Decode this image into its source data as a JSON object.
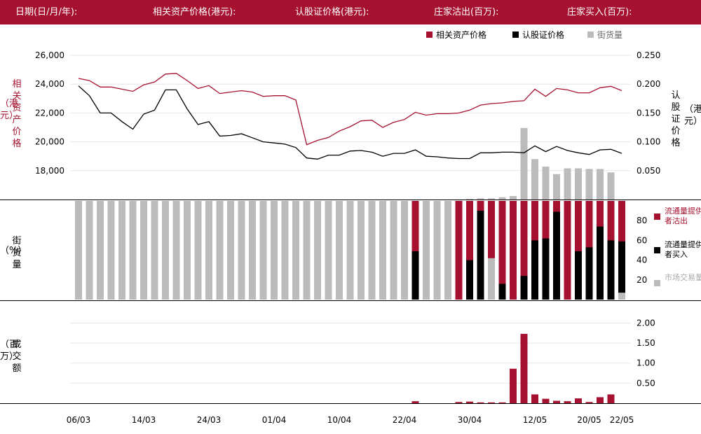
{
  "header": {
    "date_label": "日期(日/月/年):",
    "underlying_label": "相关资产价格(港元):",
    "warrant_label": "认股证价格(港元):",
    "mm_sell_label": "庄家沽出(百万):",
    "mm_buy_label": "庄家买入(百万):"
  },
  "colors": {
    "brand": "#a6112f",
    "black": "#000000",
    "gray": "#bbbbbb"
  },
  "chart_data": [
    {
      "type": "line",
      "legend": [
        "相关资产价格",
        "认股证价格",
        "街货量"
      ],
      "ylabel_left": "相关资产价格（港元）",
      "ylabel_right": "认股证价格（港元）",
      "yticks_left": [
        "26,000",
        "24,000",
        "22,000",
        "20,000",
        "18,000"
      ],
      "yticks_right": [
        "0.250",
        "0.200",
        "0.150",
        "0.100",
        "0.050"
      ],
      "ylim_left": [
        16000,
        26000
      ],
      "ylim_right": [
        0,
        0.25
      ],
      "series": [
        {
          "name": "相关资产价格",
          "axis": "left",
          "values": [
            24400,
            24250,
            23800,
            23800,
            23650,
            23500,
            23950,
            24150,
            24700,
            24750,
            24250,
            23700,
            23900,
            23350,
            23450,
            23550,
            23450,
            23150,
            23200,
            23200,
            22900,
            19800,
            20100,
            20300,
            20750,
            21050,
            21450,
            21500,
            21000,
            21350,
            21550,
            22050,
            21850,
            21950,
            21950,
            22000,
            22200,
            22550,
            22650,
            22700,
            22800,
            22850,
            23650,
            23150,
            23700,
            23600,
            23400,
            23400,
            23750,
            23850,
            23550
          ]
        },
        {
          "name": "认股证价格",
          "axis": "right",
          "values": [
            0.197,
            0.18,
            0.15,
            0.15,
            0.135,
            0.122,
            0.148,
            0.155,
            0.19,
            0.19,
            0.157,
            0.13,
            0.135,
            0.11,
            0.111,
            0.114,
            0.107,
            0.1,
            0.098,
            0.096,
            0.09,
            0.072,
            0.07,
            0.077,
            0.077,
            0.084,
            0.085,
            0.082,
            0.075,
            0.08,
            0.08,
            0.086,
            0.075,
            0.074,
            0.072,
            0.071,
            0.071,
            0.081,
            0.081,
            0.082,
            0.082,
            0.081,
            0.093,
            0.083,
            0.092,
            0.085,
            0.081,
            0.078,
            0.086,
            0.087,
            0.08
          ]
        },
        {
          "name": "街货量",
          "axis": "right",
          "values": [
            0,
            0,
            0,
            0,
            0,
            0,
            0,
            0,
            0,
            0,
            0,
            0,
            0,
            0,
            0,
            0,
            0,
            0,
            0,
            0,
            0,
            0,
            0,
            0,
            0,
            0,
            0,
            0,
            0,
            0,
            0,
            0,
            0,
            0,
            0,
            0,
            0.001,
            0.002,
            0.002,
            0.004,
            0.006,
            0.124,
            0.07,
            0.057,
            0.044,
            0.054,
            0.054,
            0.053,
            0.053,
            0.047,
            0
          ]
        }
      ]
    },
    {
      "type": "bar",
      "ylabel": "街货量（%）",
      "yticks": [
        "80",
        "60",
        "40",
        "20"
      ],
      "ylim": [
        0,
        100
      ],
      "legend": [
        "流通量提供者沽出",
        "流通量提供者买入",
        "市场交易量"
      ],
      "series": [
        {
          "name": "流通量提供者沽出",
          "values": [
            0,
            0,
            0,
            0,
            0,
            0,
            0,
            0,
            0,
            0,
            0,
            0,
            0,
            0,
            0,
            0,
            0,
            0,
            0,
            0,
            0,
            0,
            0,
            0,
            0,
            0,
            0,
            0,
            0,
            0,
            0,
            0,
            0,
            0,
            0,
            0,
            0,
            0,
            0,
            0,
            0,
            0,
            0,
            0,
            0,
            0,
            0,
            0,
            0,
            0,
            0
          ]
        },
        {
          "name": "流通量提供者买入",
          "values": [
            0,
            0,
            0,
            0,
            0,
            0,
            0,
            0,
            0,
            0,
            0,
            0,
            0,
            0,
            0,
            0,
            0,
            0,
            0,
            0,
            0,
            0,
            0,
            0,
            0,
            0,
            0,
            0,
            0,
            0,
            0,
            0,
            0,
            0,
            0,
            0,
            0,
            0,
            0,
            0,
            0,
            0,
            0,
            0,
            0,
            0,
            0,
            0,
            0,
            0,
            0
          ]
        },
        {
          "name": "市场交易量",
          "values": [
            0,
            0,
            0,
            0,
            0,
            0,
            0,
            0,
            0,
            0,
            0,
            0,
            0,
            0,
            0,
            0,
            0,
            0,
            0,
            0,
            0,
            0,
            0,
            0,
            0,
            0,
            0,
            0,
            0,
            0,
            0,
            0,
            0,
            0,
            0,
            0,
            0,
            0,
            0,
            0,
            0,
            0,
            0,
            0,
            0,
            0,
            0,
            0,
            0,
            0,
            0
          ]
        }
      ]
    },
    {
      "type": "bar",
      "ylabel": "成交额（百万）",
      "yticks": [
        "2.00",
        "1.50",
        "1.00",
        "0.50"
      ],
      "ylim": [
        0,
        2.2
      ],
      "x_labels": [
        "06/03",
        "14/03",
        "24/03",
        "01/04",
        "10/04",
        "22/04",
        "30/04",
        "12/05",
        "20/05",
        "22/05"
      ],
      "values": [
        0,
        0,
        0,
        0,
        0,
        0,
        0,
        0,
        0,
        0,
        0,
        0,
        0,
        0,
        0,
        0,
        0,
        0,
        0,
        0,
        0,
        0,
        0,
        0,
        0,
        0,
        0,
        0,
        0,
        0,
        0,
        0.05,
        0,
        0,
        0,
        0.03,
        0.04,
        0.02,
        0.02,
        0.02,
        0.86,
        1.73,
        0.22,
        0.11,
        0.06,
        0.05,
        0.12,
        0.03,
        0.15,
        0.22,
        0
      ]
    }
  ],
  "bar_panel_values": {
    "sell": [
      0,
      0,
      0,
      0,
      0,
      0,
      0,
      0,
      0,
      0,
      0,
      0,
      0,
      0,
      0,
      0,
      0,
      0,
      0,
      0,
      0,
      0,
      0,
      0,
      0,
      0,
      0,
      0,
      0,
      0,
      0,
      100,
      0,
      0,
      0,
      100,
      100,
      100,
      100,
      100,
      100,
      100,
      100,
      100,
      100,
      100,
      100,
      100,
      100,
      100,
      100
    ],
    "buy": [
      0,
      0,
      0,
      0,
      0,
      0,
      0,
      0,
      0,
      0,
      0,
      0,
      0,
      0,
      0,
      0,
      0,
      0,
      0,
      0,
      0,
      0,
      0,
      0,
      0,
      0,
      0,
      0,
      0,
      0,
      0,
      49,
      0,
      0,
      0,
      0,
      40,
      90,
      0,
      16,
      0,
      24,
      60,
      62,
      89,
      0,
      49,
      53,
      74,
      60,
      59
    ],
    "market": [
      100,
      100,
      100,
      100,
      100,
      100,
      100,
      100,
      100,
      100,
      100,
      100,
      100,
      100,
      100,
      100,
      100,
      100,
      100,
      100,
      100,
      100,
      100,
      100,
      100,
      100,
      100,
      100,
      100,
      100,
      100,
      0,
      100,
      100,
      100,
      0,
      0,
      0,
      42,
      0,
      0,
      0,
      0,
      0,
      0,
      0,
      0,
      0,
      0,
      0,
      7
    ]
  }
}
